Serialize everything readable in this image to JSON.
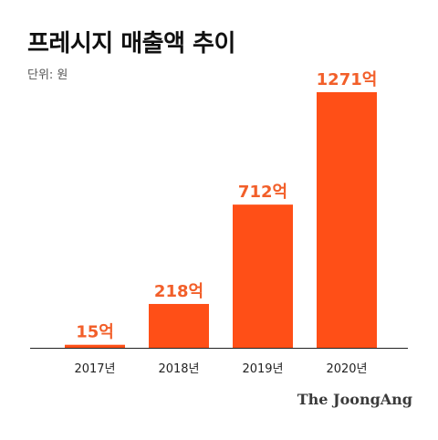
{
  "chart_data": {
    "type": "bar",
    "title": "프레시지 매출액 추이",
    "unit_label": "단위: 원",
    "categories": [
      "2017년",
      "2018년",
      "2019년",
      "2020년"
    ],
    "values": [
      15,
      218,
      712,
      1271
    ],
    "data_labels": [
      "15억",
      "218억",
      "712억",
      "1271억"
    ],
    "ylim": [
      0,
      1271
    ],
    "grid": false,
    "legend": "none",
    "colors": {
      "bar": "#FF4F17",
      "label": "#F25F2A",
      "axis": "#222222",
      "tick": "#222222"
    }
  },
  "footer": {
    "brand": "The JoongAng"
  }
}
